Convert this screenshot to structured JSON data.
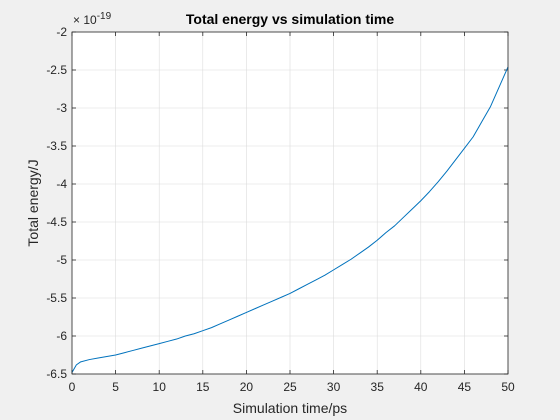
{
  "chart_data": {
    "type": "line",
    "title": "Total energy vs simulation time",
    "xlabel": "Simulation time/ps",
    "ylabel": "Total energy/J",
    "exponent_label": "× 10",
    "exponent_power": "-19",
    "xlim": [
      0,
      50
    ],
    "ylim": [
      -6.5,
      -2
    ],
    "y_scale_note": "values shown in units of 1e-19 J",
    "x_ticks": [
      "0",
      "5",
      "10",
      "15",
      "20",
      "25",
      "30",
      "35",
      "40",
      "45",
      "50"
    ],
    "y_ticks": [
      "-6.5",
      "-6",
      "-5.5",
      "-5",
      "-4.5",
      "-4",
      "-3.5",
      "-3",
      "-2.5",
      "-2"
    ],
    "grid": true,
    "series": [
      {
        "color": "#0072bd",
        "x": [
          0,
          0.5,
          1,
          2,
          3,
          4,
          5,
          6,
          7,
          8,
          9,
          10,
          11,
          12,
          13,
          14,
          15,
          16,
          17,
          18,
          19,
          20,
          21,
          22,
          23,
          24,
          25,
          26,
          27,
          28,
          29,
          30,
          31,
          32,
          33,
          34,
          35,
          36,
          37,
          38,
          39,
          40,
          41,
          42,
          43,
          44,
          45,
          46,
          47,
          48,
          49,
          50
        ],
        "y": [
          -6.48,
          -6.38,
          -6.34,
          -6.31,
          -6.29,
          -6.27,
          -6.25,
          -6.22,
          -6.19,
          -6.16,
          -6.13,
          -6.1,
          -6.07,
          -6.04,
          -6.0,
          -5.97,
          -5.93,
          -5.89,
          -5.84,
          -5.79,
          -5.74,
          -5.69,
          -5.64,
          -5.59,
          -5.54,
          -5.49,
          -5.44,
          -5.38,
          -5.32,
          -5.26,
          -5.2,
          -5.13,
          -5.06,
          -4.99,
          -4.91,
          -4.83,
          -4.74,
          -4.64,
          -4.55,
          -4.44,
          -4.33,
          -4.22,
          -4.1,
          -3.97,
          -3.83,
          -3.68,
          -3.53,
          -3.38,
          -3.18,
          -2.98,
          -2.72,
          -2.46
        ]
      }
    ]
  }
}
